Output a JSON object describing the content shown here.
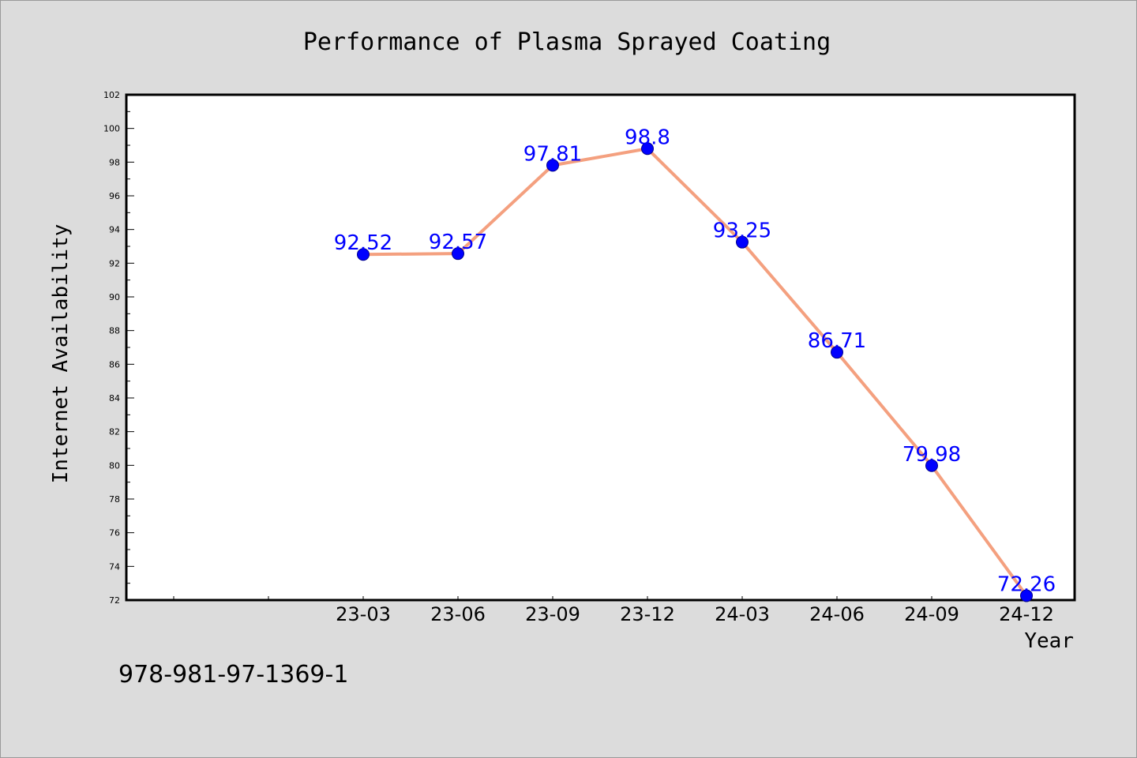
{
  "colors": {
    "background": "#dcdcdc",
    "plot_area": "#ffffff",
    "line": "#f4a07f",
    "marker": "#0000ff",
    "data_label": "#0000ff"
  },
  "footer_text": "978-981-97-1369-1",
  "chart_data": {
    "type": "line",
    "title": "Performance of Plasma Sprayed Coating",
    "xlabel": "Year",
    "ylabel": "Internet Availability",
    "categories": [
      "23-03",
      "23-06",
      "23-09",
      "23-12",
      "24-03",
      "24-06",
      "24-09",
      "24-12"
    ],
    "values": [
      92.52,
      92.57,
      97.81,
      98.8,
      93.25,
      86.71,
      79.98,
      72.26
    ],
    "data_labels": [
      "92.52",
      "92.57",
      "97.81",
      "98.8",
      "93.25",
      "86.71",
      "79.98",
      "72.26"
    ],
    "ylim": [
      72,
      102
    ],
    "yticks": [
      72,
      74,
      76,
      78,
      80,
      82,
      84,
      86,
      88,
      90,
      92,
      94,
      96,
      98,
      100,
      102
    ],
    "grid": false,
    "legend": "none"
  }
}
